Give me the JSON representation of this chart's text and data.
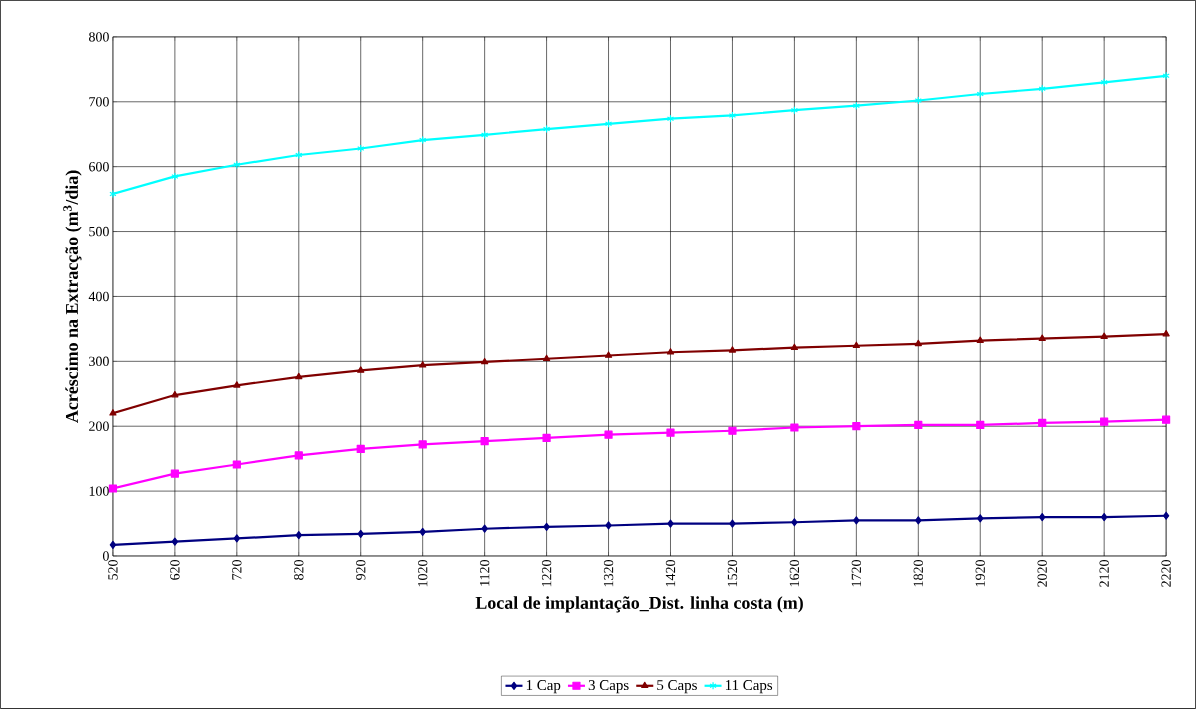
{
  "chart_data": {
    "type": "line",
    "xlabel": "Local de implantação_Dist. linha costa (m)",
    "ylabel": "Acréscimo na Extracção (m$^{3}$/dia)",
    "categories": [
      "520",
      "620",
      "720",
      "820",
      "920",
      "1020",
      "1120",
      "1220",
      "1320",
      "1420",
      "1520",
      "1620",
      "1720",
      "1820",
      "1920",
      "2020",
      "2120",
      "2220"
    ],
    "series": [
      {
        "name": "1 Cap",
        "color": "#000080",
        "marker": "diamond",
        "values": [
          17,
          22,
          27,
          32,
          34,
          37,
          42,
          45,
          47,
          50,
          50,
          52,
          55,
          55,
          58,
          60,
          60,
          62
        ]
      },
      {
        "name": "3 Caps",
        "color": "#ff00ff",
        "marker": "square",
        "values": [
          104,
          127,
          141,
          155,
          165,
          172,
          177,
          182,
          187,
          190,
          193,
          198,
          200,
          202,
          202,
          205,
          207,
          210
        ]
      },
      {
        "name": "5 Caps",
        "color": "#800000",
        "marker": "triangle",
        "values": [
          220,
          248,
          263,
          276,
          286,
          294,
          299,
          304,
          309,
          314,
          317,
          321,
          324,
          327,
          332,
          335,
          338,
          342
        ]
      },
      {
        "name": "11 Caps",
        "color": "#00ffff",
        "marker": "cross",
        "values": [
          558,
          585,
          603,
          618,
          628,
          641,
          649,
          658,
          666,
          674,
          679,
          687,
          694,
          702,
          712,
          720,
          730,
          740
        ]
      }
    ],
    "ylim": [
      0,
      800
    ],
    "yticks": [
      0,
      100,
      200,
      300,
      400,
      500,
      600,
      700,
      800
    ],
    "grid": true,
    "legend": "bottom"
  }
}
